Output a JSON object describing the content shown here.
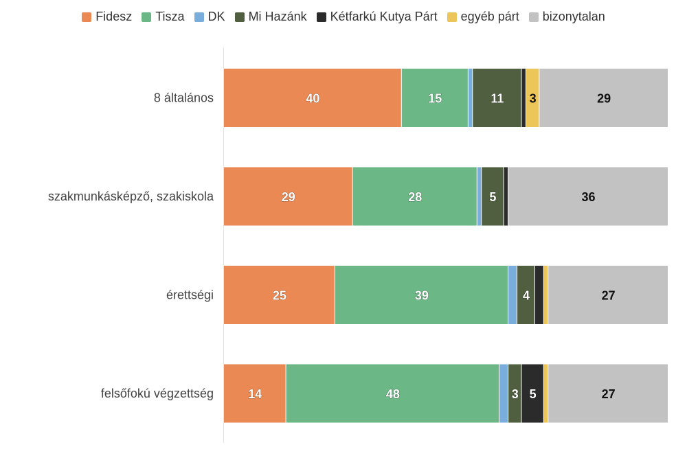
{
  "chart_data": {
    "type": "bar",
    "orientation": "horizontal",
    "stacked": true,
    "categories": [
      "8 általános",
      "szakmunkásképző, szakiskola",
      "érettségi",
      "felsőfokú végzettség"
    ],
    "series": [
      {
        "name": "Fidesz",
        "color": "#ea8954",
        "values": [
          40,
          29,
          25,
          14
        ]
      },
      {
        "name": "Tisza",
        "color": "#6bb785",
        "values": [
          15,
          28,
          39,
          48
        ]
      },
      {
        "name": "DK",
        "color": "#79aedc",
        "values": [
          1,
          1,
          2,
          2
        ]
      },
      {
        "name": "Mi Hazánk",
        "color": "#4f5f3f",
        "values": [
          11,
          5,
          4,
          3
        ]
      },
      {
        "name": "Kétfarkú Kutya Párt",
        "color": "#2b2b2b",
        "values": [
          1,
          1,
          2,
          5
        ]
      },
      {
        "name": "egyéb párt",
        "color": "#edc65a",
        "values": [
          3,
          0,
          1,
          1
        ]
      },
      {
        "name": "bizonytalan",
        "color": "#c2c2c2",
        "values": [
          29,
          36,
          27,
          27
        ]
      }
    ],
    "value_labels_shown_min": 3,
    "xlim": [
      0,
      100
    ],
    "legend_position": "top",
    "grid": false
  }
}
